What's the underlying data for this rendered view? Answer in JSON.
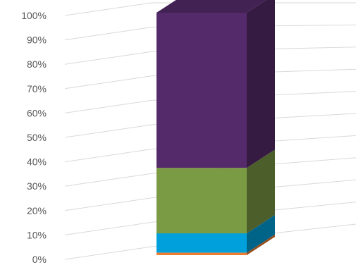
{
  "chart_data": {
    "type": "bar",
    "variant": "3d-stacked-100-percent",
    "title": "",
    "xlabel": "",
    "ylabel": "",
    "ylim": [
      0,
      100
    ],
    "y_ticks": [
      "0%",
      "10%",
      "20%",
      "30%",
      "40%",
      "50%",
      "60%",
      "70%",
      "80%",
      "90%",
      "100%"
    ],
    "grid": true,
    "legend": "none",
    "categories": [
      ""
    ],
    "series": [
      {
        "values": [
          1
        ],
        "color": "#ED7D31"
      },
      {
        "values": [
          8
        ],
        "color": "#00A0DC"
      },
      {
        "values": [
          27
        ],
        "color": "#7A9A44"
      },
      {
        "values": [
          64
        ],
        "color": "#552A6B"
      }
    ]
  }
}
